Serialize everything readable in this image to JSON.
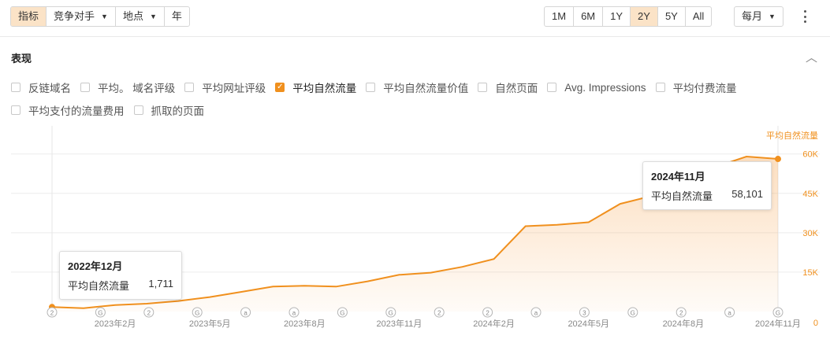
{
  "toolbar": {
    "tabs": [
      "指标",
      "竞争对手",
      "地点",
      "年"
    ],
    "ranges": [
      "1M",
      "6M",
      "1Y",
      "2Y",
      "5Y",
      "All"
    ],
    "active_range": "2Y",
    "granularity": "每月"
  },
  "section": {
    "title": "表现",
    "metrics": [
      {
        "label": "反链域名",
        "checked": false
      },
      {
        "label": "平均。 域名评级",
        "checked": false
      },
      {
        "label": "平均网址评级",
        "checked": false
      },
      {
        "label": "平均自然流量",
        "checked": true
      },
      {
        "label": "平均自然流量价值",
        "checked": false
      },
      {
        "label": "自然页面",
        "checked": false
      },
      {
        "label": "Avg. Impressions",
        "checked": false
      },
      {
        "label": "平均付费流量",
        "checked": false
      },
      {
        "label": "平均支付的流量费用",
        "checked": false
      },
      {
        "label": "抓取的页面",
        "checked": false
      }
    ]
  },
  "tooltips": [
    {
      "title": "2022年12月",
      "label": "平均自然流量",
      "value": "1,711"
    },
    {
      "title": "2024年11月",
      "label": "平均自然流量",
      "value": "58,101"
    }
  ],
  "chart_data": {
    "type": "area",
    "series": [
      {
        "name": "平均自然流量",
        "color": "#f0901e",
        "values": [
          1711,
          1300,
          2500,
          3000,
          4000,
          5500,
          7500,
          9500,
          9800,
          9500,
          11500,
          14000,
          14800,
          17000,
          20000,
          32500,
          33000,
          34000,
          41000,
          44000,
          50000,
          55000,
          59000,
          58101
        ]
      }
    ],
    "x_ticks": [
      "2023年2月",
      "2023年5月",
      "2023年8月",
      "2023年11月",
      "2024年2月",
      "2024年5月",
      "2024年8月",
      "2024年11月"
    ],
    "y_ticks": [
      "0",
      "15K",
      "30K",
      "45K",
      "60K"
    ],
    "ylim": [
      0,
      65000
    ],
    "y_axis_title": "平均自然流量",
    "event_markers": [
      "2",
      "G",
      "2",
      "G",
      "a",
      "a",
      "G",
      "G",
      "2",
      "2",
      "a",
      "3",
      "G",
      "2",
      "a",
      "G"
    ]
  }
}
